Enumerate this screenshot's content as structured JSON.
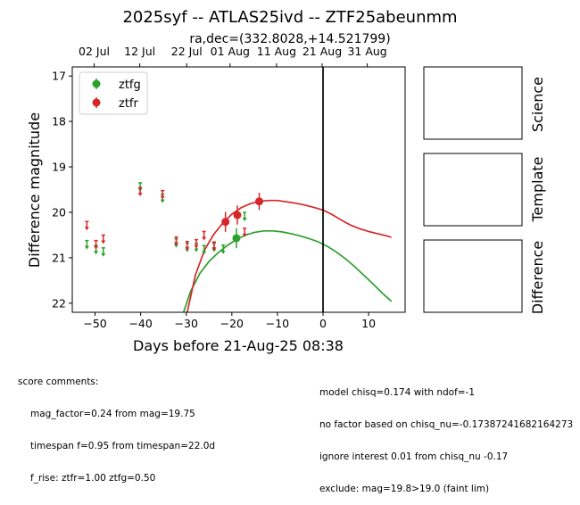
{
  "figure": {
    "title": "2025syf -- ATLAS25ivd -- ZTF25abeunmm",
    "subtitle": "ra,dec=(332.8028,+14.521799)",
    "panel_labels": [
      "Science",
      "Template",
      "Difference"
    ],
    "colors": {
      "ztfg": "#2ca02c",
      "ztfr": "#d62728",
      "reference_line": "#000000"
    }
  },
  "chart_data": {
    "type": "scatter",
    "xlabel": "Days before 21-Aug-25 08:38",
    "ylabel": "Difference magnitude",
    "xlim": [
      -55,
      18
    ],
    "ylim": [
      22.2,
      16.8
    ],
    "y_inverted": true,
    "x_ticks": [
      -50,
      -40,
      -30,
      -20,
      -10,
      0,
      10
    ],
    "y_ticks": [
      17,
      18,
      19,
      20,
      21,
      22
    ],
    "top_axis_ticks": [
      {
        "x": -50.2,
        "label": "02 Jul"
      },
      {
        "x": -40.2,
        "label": "12 Jul"
      },
      {
        "x": -29.9,
        "label": "22 Jul"
      },
      {
        "x": -20.4,
        "label": "01 Aug"
      },
      {
        "x": -10.2,
        "label": "11 Aug"
      },
      {
        "x": -0.2,
        "label": "21 Aug"
      },
      {
        "x": 9.7,
        "label": "31 Aug"
      }
    ],
    "reference_line_x": 0,
    "legend": {
      "placement": "top-left",
      "entries": [
        "ztfg",
        "ztfr"
      ]
    },
    "series": [
      {
        "name": "ztfg",
        "detections": [
          {
            "x": -19.0,
            "y": 20.57,
            "err": 0.22
          }
        ],
        "upper_limits": [
          {
            "x": -51.8,
            "y": 20.72
          },
          {
            "x": -49.8,
            "y": 20.83
          },
          {
            "x": -48.2,
            "y": 20.88
          },
          {
            "x": -40.1,
            "y": 19.45
          },
          {
            "x": -35.2,
            "y": 19.7
          },
          {
            "x": -32.2,
            "y": 20.68
          },
          {
            "x": -29.8,
            "y": 20.78
          },
          {
            "x": -27.8,
            "y": 20.78
          },
          {
            "x": -26.1,
            "y": 20.83
          },
          {
            "x": -23.9,
            "y": 20.78
          },
          {
            "x": -21.9,
            "y": 20.82
          },
          {
            "x": -17.2,
            "y": 20.1
          }
        ],
        "model": {
          "x": [
            -30.6,
            -29,
            -27,
            -25,
            -23,
            -21,
            -19,
            -17,
            -15,
            -13,
            -11,
            -9,
            -7,
            -5,
            -3,
            -1,
            1,
            3,
            5,
            7,
            9,
            11,
            13,
            15
          ],
          "y": [
            22.2,
            21.73,
            21.34,
            21.08,
            20.89,
            20.73,
            20.6,
            20.5,
            20.44,
            20.41,
            20.41,
            20.43,
            20.47,
            20.52,
            20.58,
            20.65,
            20.75,
            20.88,
            21.03,
            21.2,
            21.39,
            21.58,
            21.78,
            21.96
          ]
        }
      },
      {
        "name": "ztfr",
        "detections": [
          {
            "x": -21.4,
            "y": 20.21,
            "err": 0.22
          },
          {
            "x": -18.8,
            "y": 20.06,
            "err": 0.21
          },
          {
            "x": -14.0,
            "y": 19.76,
            "err": 0.19
          }
        ],
        "upper_limits": [
          {
            "x": -51.8,
            "y": 20.3
          },
          {
            "x": -49.8,
            "y": 20.72
          },
          {
            "x": -48.2,
            "y": 20.6
          },
          {
            "x": -40.1,
            "y": 19.55
          },
          {
            "x": -35.2,
            "y": 19.62
          },
          {
            "x": -32.2,
            "y": 20.64
          },
          {
            "x": -29.8,
            "y": 20.74
          },
          {
            "x": -27.8,
            "y": 20.7
          },
          {
            "x": -26.1,
            "y": 20.52
          },
          {
            "x": -23.9,
            "y": 20.75
          },
          {
            "x": -17.2,
            "y": 20.45
          }
        ],
        "model": {
          "x": [
            -29.8,
            -28,
            -26,
            -24,
            -22,
            -20,
            -18,
            -16,
            -14,
            -12,
            -10,
            -8,
            -6,
            -4,
            -2,
            0,
            2,
            4,
            6,
            8,
            10,
            12,
            14,
            15
          ],
          "y": [
            22.2,
            21.38,
            20.83,
            20.49,
            20.24,
            20.04,
            19.9,
            19.81,
            19.76,
            19.74,
            19.74,
            19.77,
            19.8,
            19.84,
            19.89,
            19.95,
            20.05,
            20.17,
            20.28,
            20.36,
            20.42,
            20.47,
            20.52,
            20.55
          ]
        }
      }
    ]
  },
  "score_comments": {
    "heading": "score comments:",
    "left": [
      "mag_factor=0.24 from mag=19.75",
      "timespan f=0.95 from timespan=22.0d",
      "f_rise: ztfr=1.00 ztfg=0.50"
    ],
    "right": [
      "model chisq=0.174 with ndof=-1",
      "no factor based on chisq_nu=-0.17387241682164273",
      "ignore interest 0.01 from chisq_nu -0.17",
      "exclude: mag=19.8>19.0 (faint lim)"
    ]
  }
}
